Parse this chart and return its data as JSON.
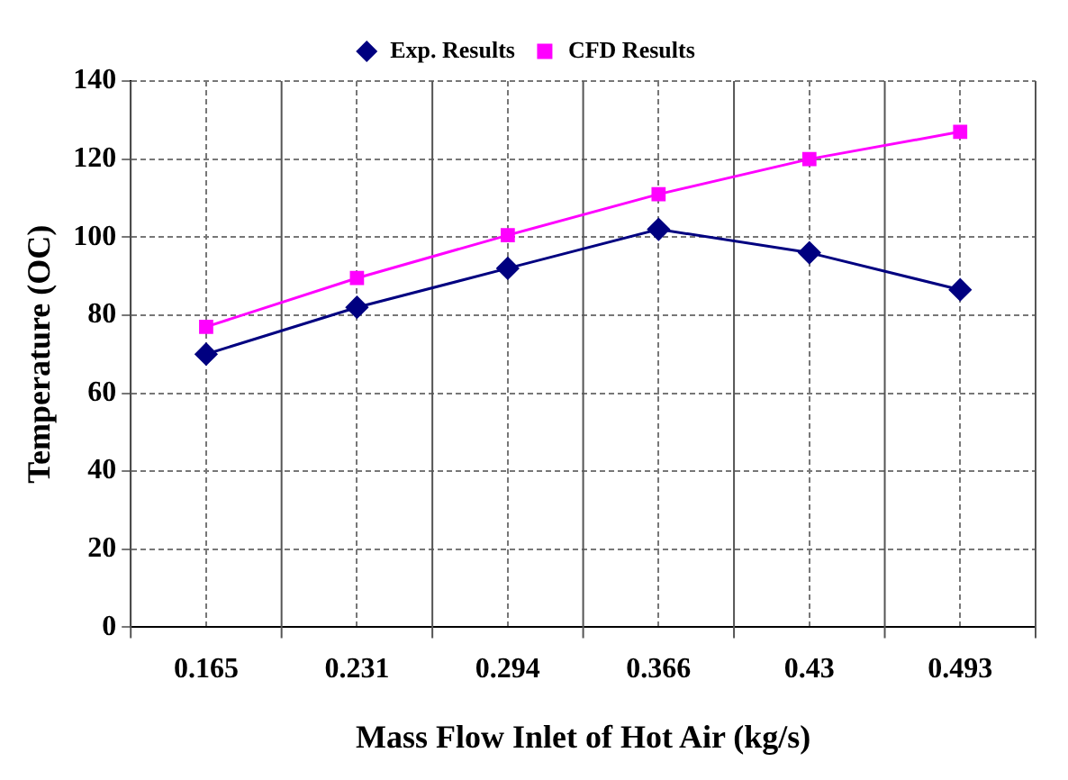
{
  "chart_data": {
    "type": "line",
    "xlabel": "Mass Flow Inlet of Hot Air (kg/s)",
    "ylabel": "Temperature (OC)",
    "categories": [
      "0.165",
      "0.231",
      "0.294",
      "0.366",
      "0.43",
      "0.493"
    ],
    "series": [
      {
        "name": "Exp. Results",
        "color": "#000080",
        "marker": "diamond",
        "values": [
          70,
          82,
          92,
          102,
          96,
          86.5
        ]
      },
      {
        "name": "CFD Results",
        "color": "#ff00ff",
        "marker": "square",
        "values": [
          77,
          89.5,
          100.5,
          111,
          120,
          127
        ]
      }
    ],
    "ylim": [
      0,
      140
    ],
    "yticks": [
      0,
      20,
      40,
      60,
      80,
      100,
      120,
      140
    ],
    "grid": true,
    "legend": "top"
  }
}
